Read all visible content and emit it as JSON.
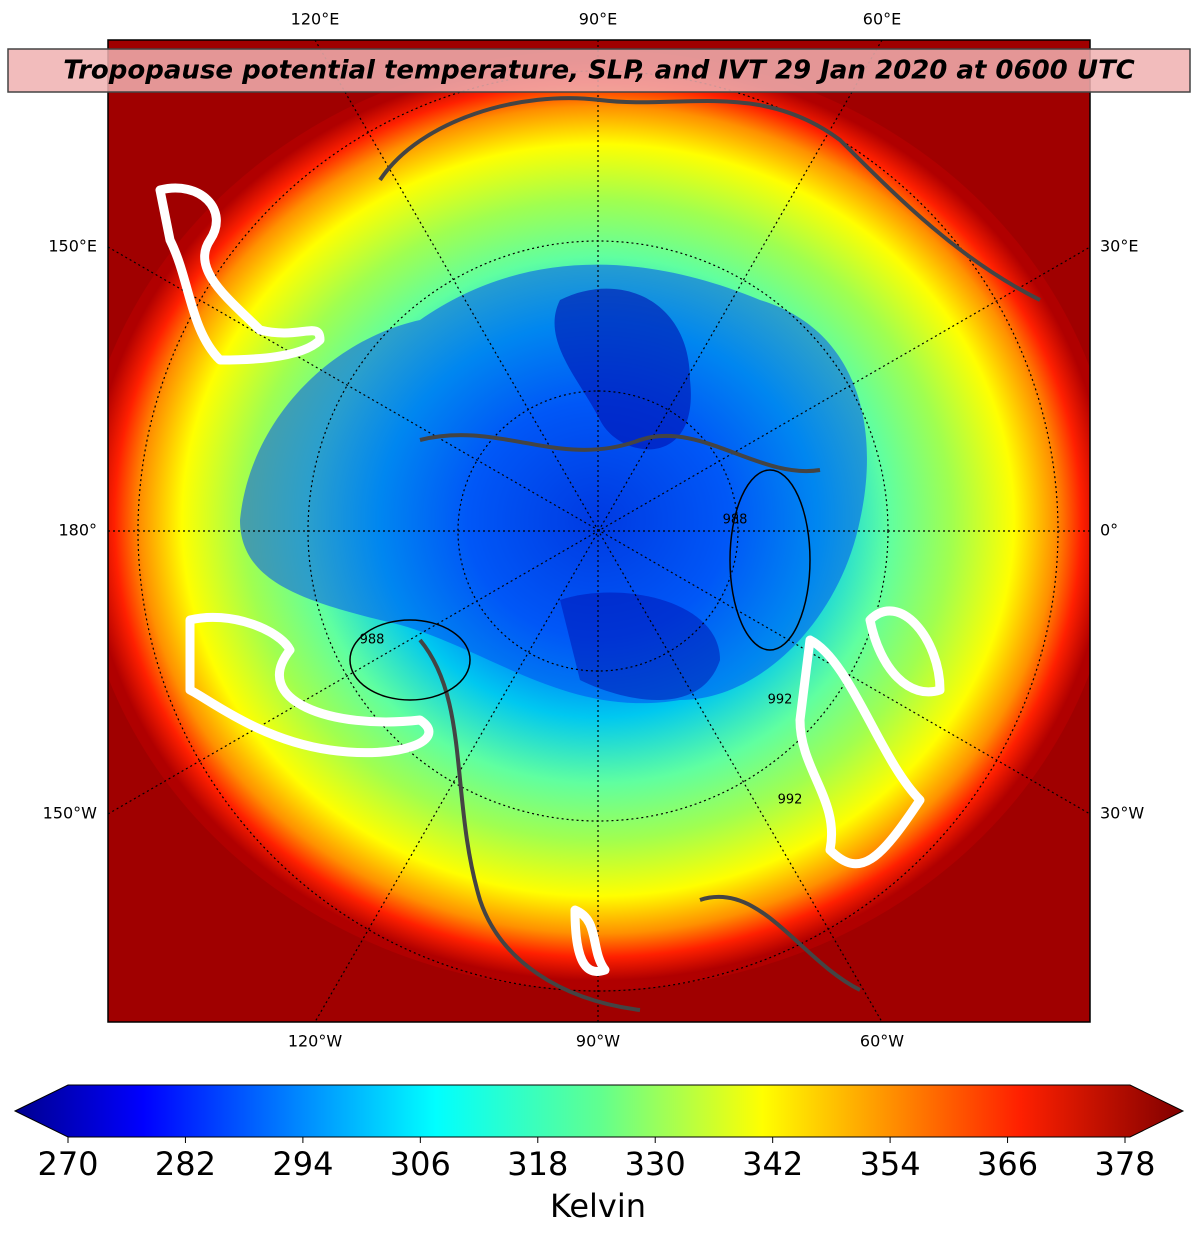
{
  "map": {
    "title": "Tropopause potential temperature, SLP, and IVT 29 Jan 2020 at 0600 UTC",
    "top_labels": [
      "120°E",
      "90°E",
      "60°E"
    ],
    "bottom_labels": [
      "120°W",
      "90°W",
      "60°W"
    ],
    "left_labels": [
      "150°E",
      "180°",
      "150°W"
    ],
    "right_labels": [
      "30°E",
      "0°",
      "30°W"
    ],
    "contour_labels": [
      "988",
      "988",
      "992",
      "992"
    ]
  },
  "colorbar": {
    "label": "Kelvin",
    "range": [
      270,
      378
    ],
    "ticks": [
      270,
      282,
      294,
      306,
      318,
      330,
      342,
      354,
      366,
      378
    ]
  }
}
